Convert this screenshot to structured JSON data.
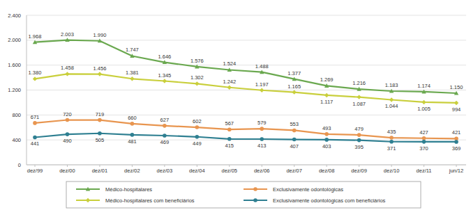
{
  "chart_data": {
    "type": "line",
    "categories": [
      "dez/99",
      "dez/00",
      "dez/01",
      "dez/02",
      "dez/03",
      "dez/04",
      "dez/05",
      "dez/06",
      "dez/07",
      "dez/08",
      "dez/09",
      "dez/10",
      "dez/11",
      "jun/12"
    ],
    "series": [
      {
        "name": "Médico-hospitalares",
        "color": "#6aa84f",
        "marker": "triangle",
        "values": [
          1968,
          2003,
          1990,
          1747,
          1646,
          1576,
          1524,
          1488,
          1377,
          1269,
          1216,
          1183,
          1174,
          1150
        ],
        "value_labels": [
          "1.968",
          "2.003",
          "1.990",
          "1.747",
          "1.646",
          "1.576",
          "1.524",
          "1.488",
          "1.377",
          "1.269",
          "1.216",
          "1.183",
          "1.174",
          "1.150"
        ]
      },
      {
        "name": "Médico-hospitalares com beneficiários",
        "color": "#c9cf3c",
        "marker": "diamond",
        "values": [
          1380,
          1458,
          1456,
          1381,
          1345,
          1302,
          1242,
          1197,
          1165,
          1117,
          1087,
          1044,
          1005,
          994
        ],
        "value_labels": [
          "1.380",
          "1.458",
          "1.456",
          "1.381",
          "1.345",
          "1.302",
          "1.242",
          "1.197",
          "1.165",
          "1.117",
          "1.087",
          "1.044",
          "1.005",
          "994"
        ]
      },
      {
        "name": "Exclusivamente odontológicas",
        "color": "#e8954f",
        "marker": "circle",
        "values": [
          671,
          720,
          719,
          660,
          627,
          602,
          567,
          579,
          553,
          493,
          479,
          435,
          427,
          421
        ]
      },
      {
        "name": "Exclusivamente odontológicas com beneficiários",
        "color": "#2e7f91",
        "marker": "circle",
        "values": [
          441,
          490,
          505,
          481,
          469,
          449,
          415,
          413,
          407,
          403,
          395,
          371,
          370,
          369
        ]
      }
    ],
    "ylim": [
      0,
      2400
    ],
    "yticks": [
      0,
      400,
      800,
      {
        "value": 1200,
        "label": "1.200"
      },
      {
        "value": 1600,
        "label": "1.600"
      },
      {
        "value": 2000,
        "label": "2.000"
      },
      {
        "value": 2400,
        "label": "2.400"
      }
    ],
    "grid": true,
    "legend": "bottom",
    "data_labels": true
  }
}
